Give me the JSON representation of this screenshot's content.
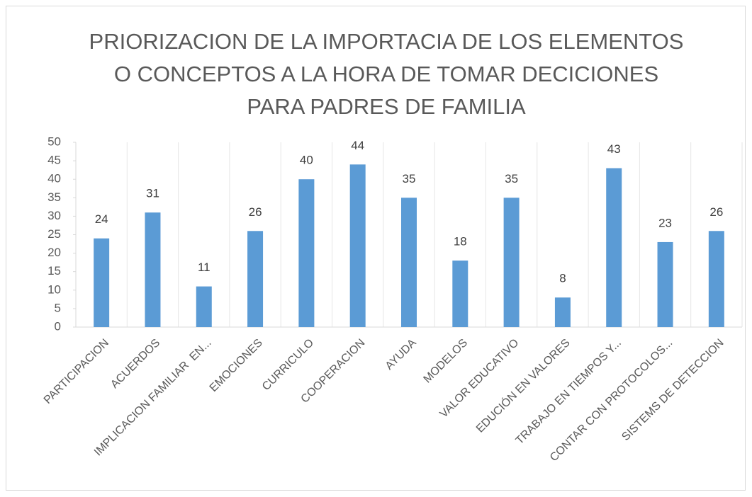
{
  "chart_data": {
    "type": "bar",
    "title": [
      "PRIORIZACION DE LA IMPORTACIA DE LOS ELEMENTOS",
      "O CONCEPTOS A LA HORA DE TOMAR DECICIONES",
      "PARA PADRES DE FAMILIA"
    ],
    "categories": [
      "PARTICIPACION",
      "ACUERDOS",
      "IMPLICACION FAMILIAR  EN...",
      "EMOCIONES",
      "CURRICULO",
      "COOPERACION",
      "AYUDA",
      "MODELOS",
      "VALOR EDUCATIVO",
      "EDUCIÓN EN VALORES",
      "TRABAJO EN TIEMPOS Y...",
      "CONTAR CON PROTOCOLOS...",
      "SISTEMS DE DETECCION"
    ],
    "values": [
      24,
      31,
      11,
      26,
      40,
      44,
      35,
      18,
      35,
      8,
      43,
      23,
      26
    ],
    "color": "#5b9bd5",
    "ylim": [
      0,
      50
    ],
    "yticks": [
      0,
      5,
      10,
      15,
      20,
      25,
      30,
      35,
      40,
      45,
      50
    ]
  }
}
